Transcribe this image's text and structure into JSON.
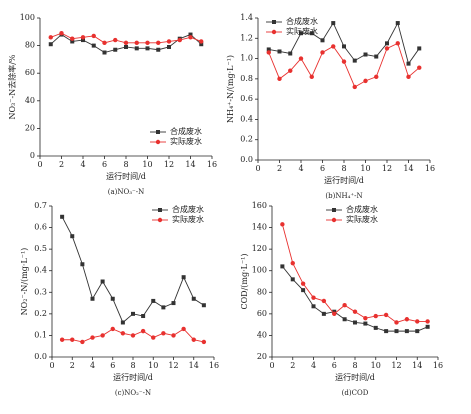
{
  "chart_data": [
    {
      "type": "line",
      "caption": "(a)NO₃⁻-N",
      "ylabel": "NO₃⁻-N去除率/%",
      "xlabel": "运行时间/d",
      "x": [
        1,
        2,
        3,
        4,
        5,
        6,
        7,
        8,
        9,
        10,
        11,
        12,
        13,
        14,
        15
      ],
      "xlim": [
        0,
        16
      ],
      "xticks": [
        0,
        2,
        4,
        6,
        8,
        10,
        12,
        14,
        16
      ],
      "ylim": [
        0,
        100
      ],
      "yticks": [
        0,
        20,
        40,
        60,
        80,
        100
      ],
      "legend": "lower right",
      "series": [
        {
          "name": "合成废水",
          "color": "#333333",
          "marker": "square",
          "values": [
            81,
            88,
            83,
            84,
            80,
            75,
            77,
            79,
            78,
            78,
            77,
            79,
            85,
            88,
            81
          ]
        },
        {
          "name": "实际废水",
          "color": "#e8312f",
          "marker": "circle",
          "values": [
            86,
            89,
            85,
            86,
            87,
            82,
            84,
            82,
            82,
            82,
            82,
            83,
            84,
            86,
            83
          ]
        }
      ]
    },
    {
      "type": "line",
      "caption": "(b)NH₄⁺-N",
      "ylabel": "NH₄⁺-N/(mg·L⁻¹)",
      "xlabel": "运行时间/d",
      "x": [
        1,
        2,
        3,
        4,
        5,
        6,
        7,
        8,
        9,
        10,
        11,
        12,
        13,
        14,
        15
      ],
      "xlim": [
        0,
        16
      ],
      "xticks": [
        0,
        2,
        4,
        6,
        8,
        10,
        12,
        14,
        16
      ],
      "ylim": [
        0,
        1.4
      ],
      "yticks": [
        {
          "value": 0,
          "label": "0.0"
        },
        0.2,
        0.4,
        0.6,
        0.8,
        {
          "value": 1,
          "label": "1.0"
        },
        1.2,
        1.4
      ],
      "legend": "upper left",
      "series": [
        {
          "name": "合成废水",
          "color": "#333333",
          "marker": "square",
          "values": [
            1.09,
            1.07,
            1.05,
            1.25,
            1.25,
            1.18,
            1.35,
            1.12,
            0.98,
            1.04,
            1.02,
            1.15,
            1.35,
            0.95,
            1.1
          ]
        },
        {
          "name": "实际废水",
          "color": "#e8312f",
          "marker": "circle",
          "values": [
            1.06,
            0.8,
            0.88,
            1.0,
            0.82,
            1.06,
            1.12,
            0.97,
            0.72,
            0.78,
            0.82,
            1.1,
            1.15,
            0.82,
            0.91
          ]
        }
      ]
    },
    {
      "type": "line",
      "caption": "(c)NO₂⁻-N",
      "ylabel": "NO₂⁻-N/(mg·L⁻¹)",
      "xlabel": "运行时间/d",
      "x": [
        1,
        2,
        3,
        4,
        5,
        6,
        7,
        8,
        9,
        10,
        11,
        12,
        13,
        14,
        15
      ],
      "xlim": [
        0,
        16
      ],
      "xticks": [
        0,
        2,
        4,
        6,
        8,
        10,
        12,
        14,
        16
      ],
      "ylim": [
        0,
        0.7
      ],
      "yticks": [
        {
          "value": 0,
          "label": "0.0"
        },
        0.1,
        0.2,
        0.3,
        0.4,
        0.5,
        0.6,
        0.7
      ],
      "legend": "upper right",
      "series": [
        {
          "name": "合成废水",
          "color": "#333333",
          "marker": "square",
          "values": [
            0.65,
            0.56,
            0.43,
            0.27,
            0.35,
            0.27,
            0.16,
            0.2,
            0.19,
            0.26,
            0.23,
            0.25,
            0.37,
            0.27,
            0.24
          ]
        },
        {
          "name": "实际废水",
          "color": "#e8312f",
          "marker": "circle",
          "values": [
            0.08,
            0.08,
            0.07,
            0.09,
            0.1,
            0.13,
            0.11,
            0.1,
            0.12,
            0.09,
            0.11,
            0.1,
            0.13,
            0.08,
            0.07
          ]
        }
      ]
    },
    {
      "type": "line",
      "caption": "(d)COD",
      "ylabel": "COD/(mg·L⁻¹)",
      "xlabel": "运行时间/d",
      "x": [
        1,
        2,
        3,
        4,
        5,
        6,
        7,
        8,
        9,
        10,
        11,
        12,
        13,
        14,
        15
      ],
      "xlim": [
        0,
        16
      ],
      "xticks": [
        0,
        2,
        4,
        6,
        8,
        10,
        12,
        14,
        16
      ],
      "ylim": [
        20,
        160
      ],
      "yticks": [
        20,
        40,
        60,
        80,
        100,
        120,
        140,
        160
      ],
      "legend": "upper center",
      "series": [
        {
          "name": "合成废水",
          "color": "#333333",
          "marker": "square",
          "values": [
            104,
            92,
            82,
            67,
            60,
            62,
            55,
            52,
            51,
            47,
            44,
            44,
            44,
            44,
            48
          ]
        },
        {
          "name": "实际废水",
          "color": "#e8312f",
          "marker": "circle",
          "values": [
            143,
            107,
            88,
            75,
            72,
            60,
            68,
            62,
            56,
            58,
            59,
            52,
            55,
            53,
            53
          ]
        }
      ]
    }
  ]
}
